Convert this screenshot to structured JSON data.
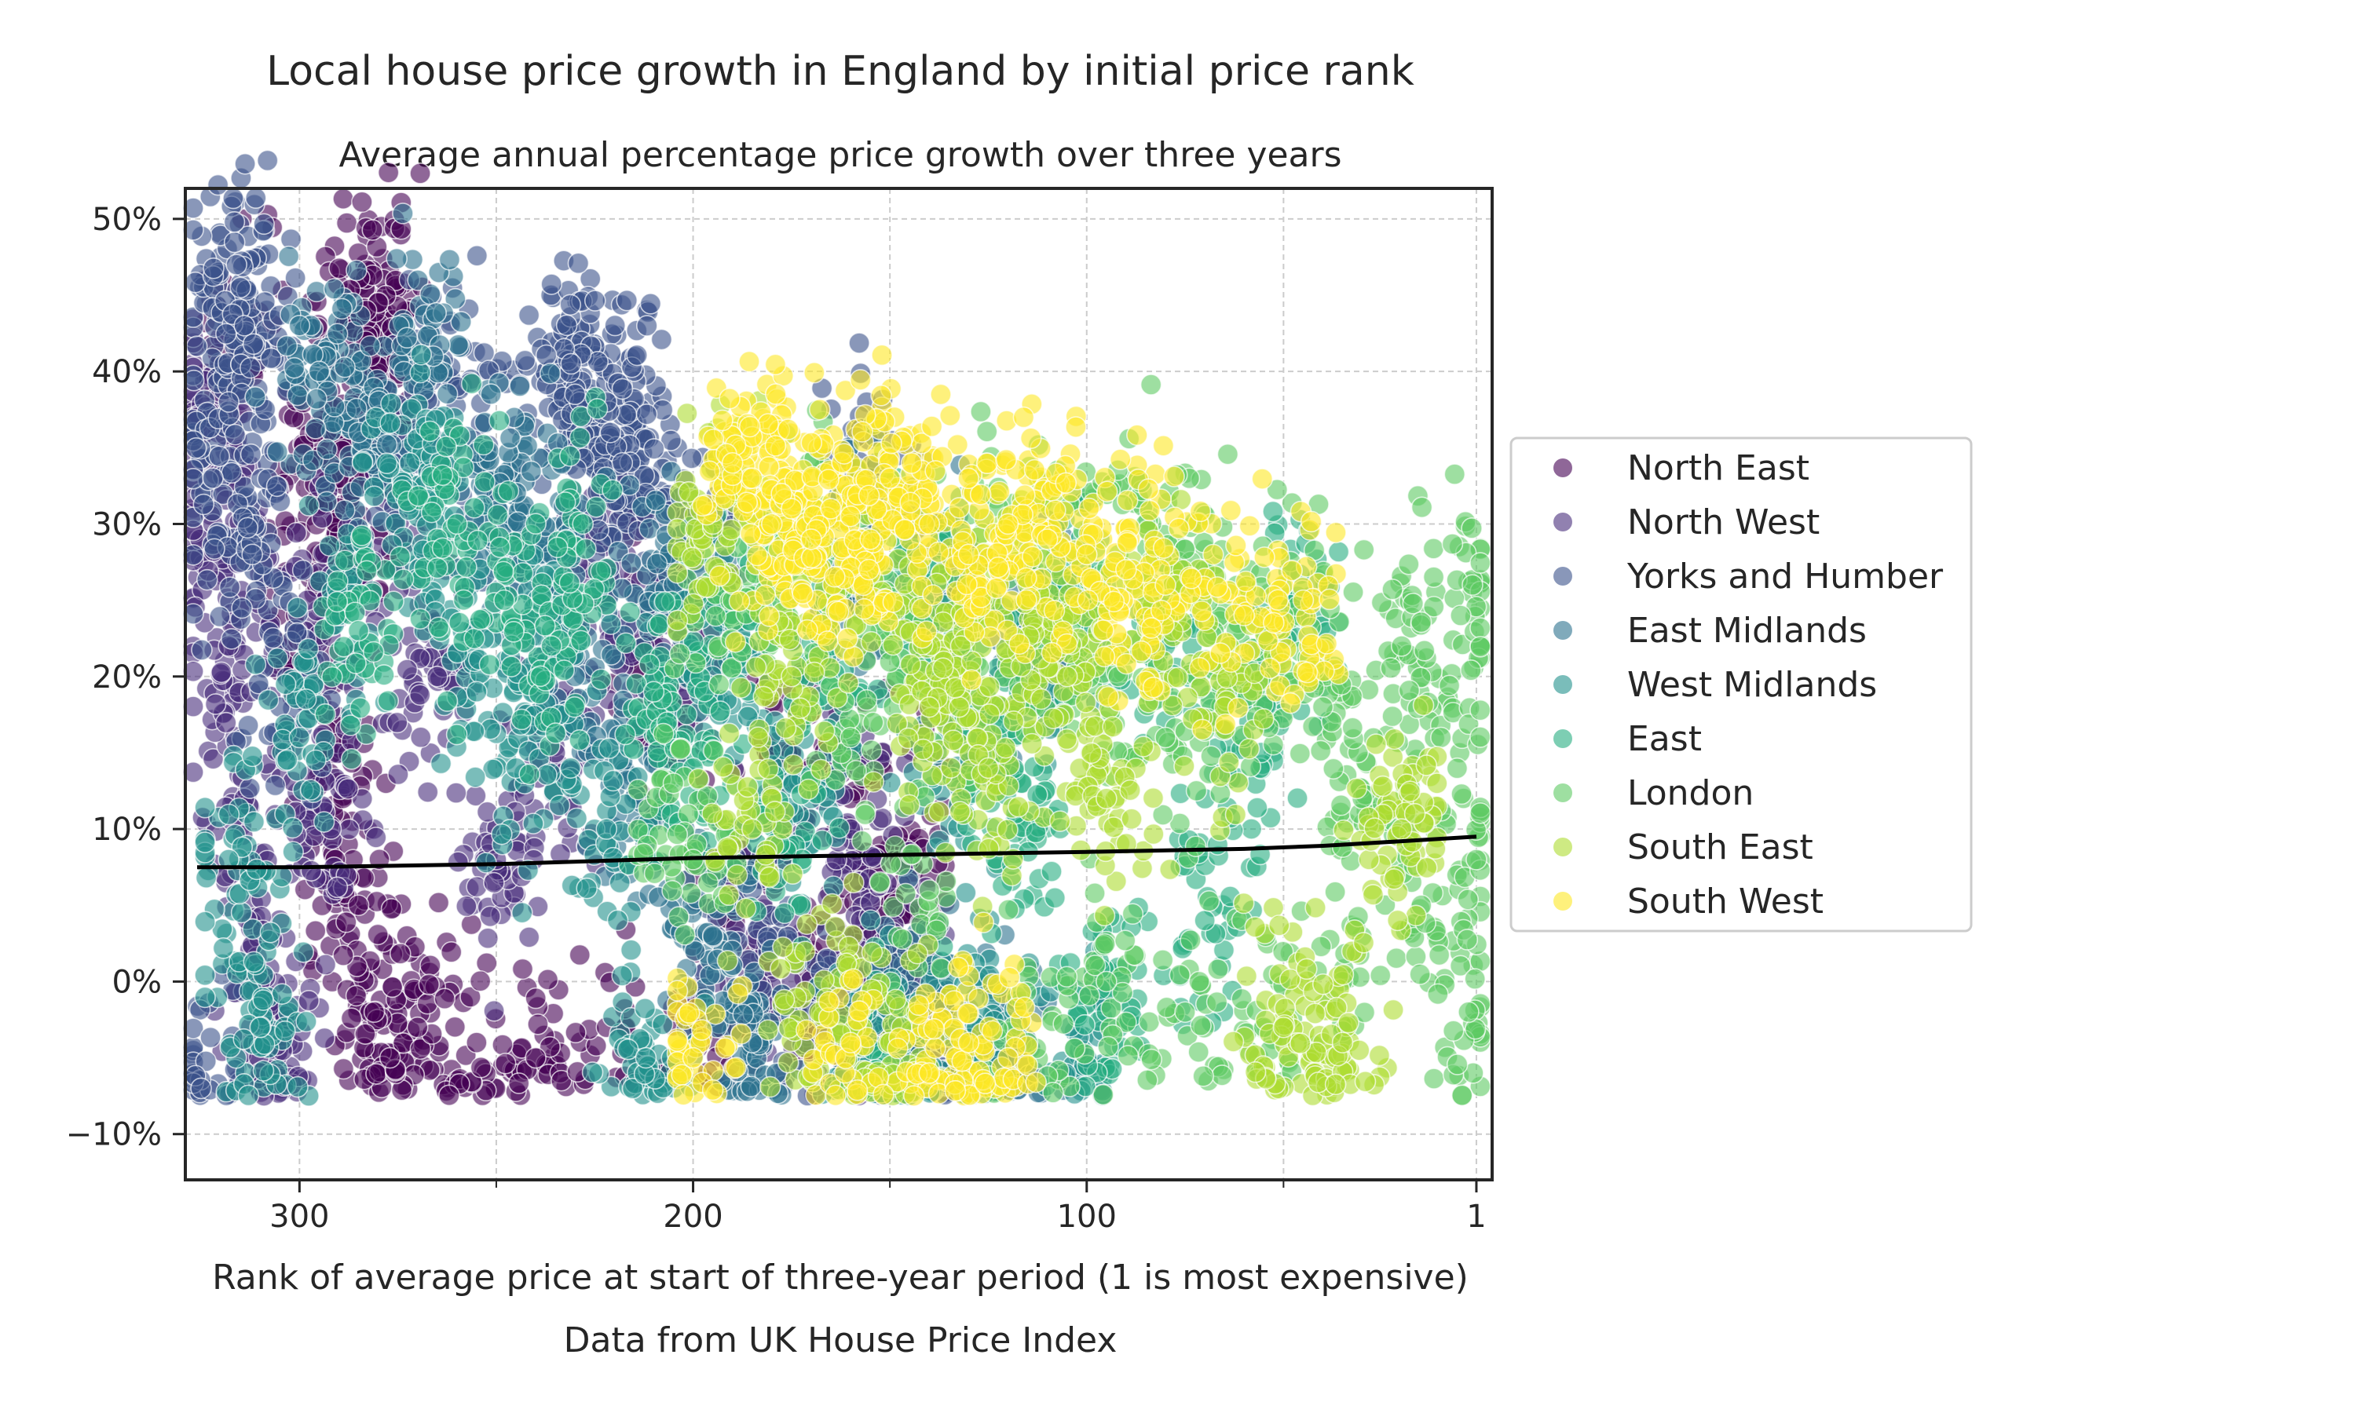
{
  "chart_data": {
    "type": "scatter",
    "title": "Local house price growth in England by initial price rank",
    "subtitle": "Average annual percentage price growth over three years",
    "xlabel": "Rank of average price at start of three-year period (1 is most expensive)",
    "source": "Data from UK House Price Index",
    "xlim": [
      329,
      -3
    ],
    "ylim": [
      -13,
      52
    ],
    "x_ticks": [
      {
        "value": 300,
        "label": "300"
      },
      {
        "value": 200,
        "label": "200"
      },
      {
        "value": 100,
        "label": "100"
      },
      {
        "value": 1,
        "label": "1"
      }
    ],
    "x_minor_ticks": [
      250,
      150,
      50
    ],
    "y_ticks": [
      {
        "value": 50,
        "label": "50%"
      },
      {
        "value": 40,
        "label": "40%"
      },
      {
        "value": 30,
        "label": "30%"
      },
      {
        "value": 20,
        "label": "20%"
      },
      {
        "value": 10,
        "label": "10%"
      },
      {
        "value": 0,
        "label": "0%"
      },
      {
        "value": -10,
        "label": "−10%"
      }
    ],
    "grid": true,
    "legend_position": "right",
    "point_alpha": 0.6,
    "series": [
      {
        "name": "North East",
        "color": "#440154",
        "approx_rank_range": [
          320,
          140
        ],
        "points": [
          [
            316,
            42
          ],
          [
            280,
            44.5
          ],
          [
            283,
            44
          ],
          [
            282,
            41
          ],
          [
            279,
            39
          ],
          [
            296,
            36
          ],
          [
            290,
            33
          ],
          [
            287,
            28
          ],
          [
            301,
            24
          ],
          [
            295,
            18
          ],
          [
            289,
            12
          ],
          [
            285,
            5
          ],
          [
            281,
            -2
          ],
          [
            277,
            -5
          ],
          [
            270,
            -3
          ],
          [
            255,
            -4
          ],
          [
            240,
            -5
          ],
          [
            222,
            -3
          ],
          [
            210,
            22
          ],
          [
            205,
            18
          ],
          [
            195,
            -2
          ],
          [
            175,
            15
          ],
          [
            168,
            -1
          ],
          [
            160,
            12
          ],
          [
            150,
            3
          ],
          [
            145,
            8
          ]
        ]
      },
      {
        "name": "North West",
        "color": "#472d7b",
        "approx_rank_range": [
          328,
          140
        ],
        "points": [
          [
            326,
            37
          ],
          [
            322,
            30
          ],
          [
            318,
            22
          ],
          [
            314,
            12
          ],
          [
            310,
            0
          ],
          [
            306,
            -6
          ],
          [
            298,
            25
          ],
          [
            292,
            10
          ],
          [
            276,
            30
          ],
          [
            265,
            20
          ],
          [
            250,
            8
          ],
          [
            235,
            15
          ],
          [
            222,
            27
          ],
          [
            208,
            20
          ],
          [
            190,
            5
          ],
          [
            175,
            0
          ],
          [
            160,
            10
          ],
          [
            152,
            2
          ],
          [
            145,
            -3
          ]
        ]
      },
      {
        "name": "Yorks and Humber",
        "color": "#3b528b",
        "approx_rank_range": [
          328,
          140
        ],
        "points": [
          [
            316,
            47
          ],
          [
            315,
            45.5
          ],
          [
            314,
            43
          ],
          [
            318,
            38
          ],
          [
            322,
            33
          ],
          [
            325,
            -7
          ],
          [
            312,
            28
          ],
          [
            305,
            18
          ],
          [
            270,
            36
          ],
          [
            260,
            39
          ],
          [
            250,
            32
          ],
          [
            231,
            40.5
          ],
          [
            230,
            38.5
          ],
          [
            228,
            37
          ],
          [
            222,
            38
          ],
          [
            221,
            36
          ],
          [
            218,
            34
          ],
          [
            212,
            32
          ],
          [
            198,
            30
          ],
          [
            185,
            6
          ],
          [
            170,
            -2
          ],
          [
            155,
            33
          ],
          [
            150,
            -4
          ],
          [
            120,
            -6
          ]
        ]
      },
      {
        "name": "East Midlands",
        "color": "#2c728e",
        "approx_rank_range": [
          320,
          110
        ],
        "points": [
          [
            295,
            40
          ],
          [
            285,
            36
          ],
          [
            266,
            41
          ],
          [
            248,
            32
          ],
          [
            236,
            28
          ],
          [
            230,
            20
          ],
          [
            215,
            12
          ],
          [
            205,
            26
          ],
          [
            195,
            3
          ],
          [
            185,
            -4
          ],
          [
            160,
            27
          ],
          [
            142,
            -1
          ],
          [
            133,
            26
          ],
          [
            120,
            -5
          ],
          [
            112,
            24
          ]
        ]
      },
      {
        "name": "West Midlands",
        "color": "#21918c",
        "approx_rank_range": [
          320,
          100
        ],
        "points": [
          [
            318,
            8
          ],
          [
            310,
            -3
          ],
          [
            300,
            16
          ],
          [
            290,
            24
          ],
          [
            272,
            34
          ],
          [
            264,
            29
          ],
          [
            255,
            19
          ],
          [
            245,
            14
          ],
          [
            235,
            24
          ],
          [
            222,
            10
          ],
          [
            212,
            -5
          ],
          [
            200,
            20
          ],
          [
            188,
            22
          ],
          [
            170,
            12
          ],
          [
            155,
            -4
          ],
          [
            148,
            -6
          ],
          [
            138,
            15
          ],
          [
            128,
            -3
          ],
          [
            110,
            22
          ],
          [
            100,
            -5
          ]
        ]
      },
      {
        "name": "East",
        "color": "#27ad81",
        "approx_rank_range": [
          290,
          40
        ],
        "points": [
          [
            285,
            23
          ],
          [
            260,
            30
          ],
          [
            248,
            25
          ],
          [
            236,
            22
          ],
          [
            228,
            30
          ],
          [
            210,
            19
          ],
          [
            200,
            14
          ],
          [
            190,
            25
          ],
          [
            178,
            9
          ],
          [
            165,
            22
          ],
          [
            150,
            -6
          ],
          [
            140,
            27
          ],
          [
            128,
            18
          ],
          [
            118,
            11
          ],
          [
            105,
            26
          ],
          [
            95,
            -2
          ],
          [
            80,
            22
          ],
          [
            70,
            4
          ],
          [
            60,
            16
          ],
          [
            45,
            24
          ]
        ]
      },
      {
        "name": "London",
        "color": "#5ec962",
        "approx_rank_range": [
          210,
          0
        ],
        "points": [
          [
            205,
            13
          ],
          [
            200,
            8
          ],
          [
            190,
            25
          ],
          [
            180,
            28
          ],
          [
            170,
            30
          ],
          [
            160,
            16
          ],
          [
            150,
            24
          ],
          [
            140,
            6
          ],
          [
            130,
            20
          ],
          [
            120,
            30
          ],
          [
            110,
            22
          ],
          [
            100,
            28
          ],
          [
            92,
            20
          ],
          [
            85,
            30
          ],
          [
            80,
            16
          ],
          [
            70,
            27
          ],
          [
            60,
            20
          ],
          [
            50,
            24
          ],
          [
            40,
            18
          ],
          [
            30,
            12
          ],
          [
            20,
            22
          ],
          [
            10,
            16
          ],
          [
            5,
            24
          ],
          [
            2,
            26
          ],
          [
            1,
            8
          ],
          [
            3,
            -2
          ],
          [
            15,
            5
          ],
          [
            35,
            0
          ],
          [
            55,
            -3
          ],
          [
            75,
            -2
          ],
          [
            95,
            0
          ],
          [
            115,
            -4
          ]
        ]
      },
      {
        "name": "South East",
        "color": "#addc30",
        "approx_rank_range": [
          200,
          15
        ],
        "points": [
          [
            195,
            30
          ],
          [
            185,
            10
          ],
          [
            175,
            20
          ],
          [
            168,
            -2
          ],
          [
            158,
            28
          ],
          [
            150,
            -4
          ],
          [
            140,
            18
          ],
          [
            132,
            22
          ],
          [
            125,
            14
          ],
          [
            115,
            26
          ],
          [
            105,
            20
          ],
          [
            95,
            12
          ],
          [
            80,
            24
          ],
          [
            65,
            18
          ],
          [
            50,
            -3
          ],
          [
            35,
            -4
          ],
          [
            20,
            10
          ]
        ]
      },
      {
        "name": "South West",
        "color": "#fde725",
        "approx_rank_range": [
          200,
          40
        ],
        "points": [
          [
            190,
            34
          ],
          [
            185,
            33
          ],
          [
            180,
            30
          ],
          [
            175,
            31
          ],
          [
            170,
            29
          ],
          [
            165,
            31
          ],
          [
            160,
            30.5
          ],
          [
            155,
            29
          ],
          [
            150,
            33
          ],
          [
            140,
            30
          ],
          [
            130,
            28
          ],
          [
            120,
            30
          ],
          [
            110,
            29
          ],
          [
            100,
            28
          ],
          [
            90,
            27
          ],
          [
            80,
            26
          ],
          [
            60,
            24
          ],
          [
            45,
            25
          ],
          [
            120,
            -5
          ],
          [
            130,
            -4
          ],
          [
            140,
            -6
          ],
          [
            160,
            -4
          ],
          [
            200,
            -5
          ]
        ]
      }
    ],
    "trend_line": {
      "color": "#000000",
      "points": [
        [
          326,
          7.5
        ],
        [
          300,
          7.5
        ],
        [
          250,
          7.7
        ],
        [
          200,
          8.1
        ],
        [
          150,
          8.3
        ],
        [
          100,
          8.5
        ],
        [
          60,
          8.7
        ],
        [
          40,
          8.9
        ],
        [
          20,
          9.2
        ],
        [
          1,
          9.5
        ]
      ]
    }
  }
}
